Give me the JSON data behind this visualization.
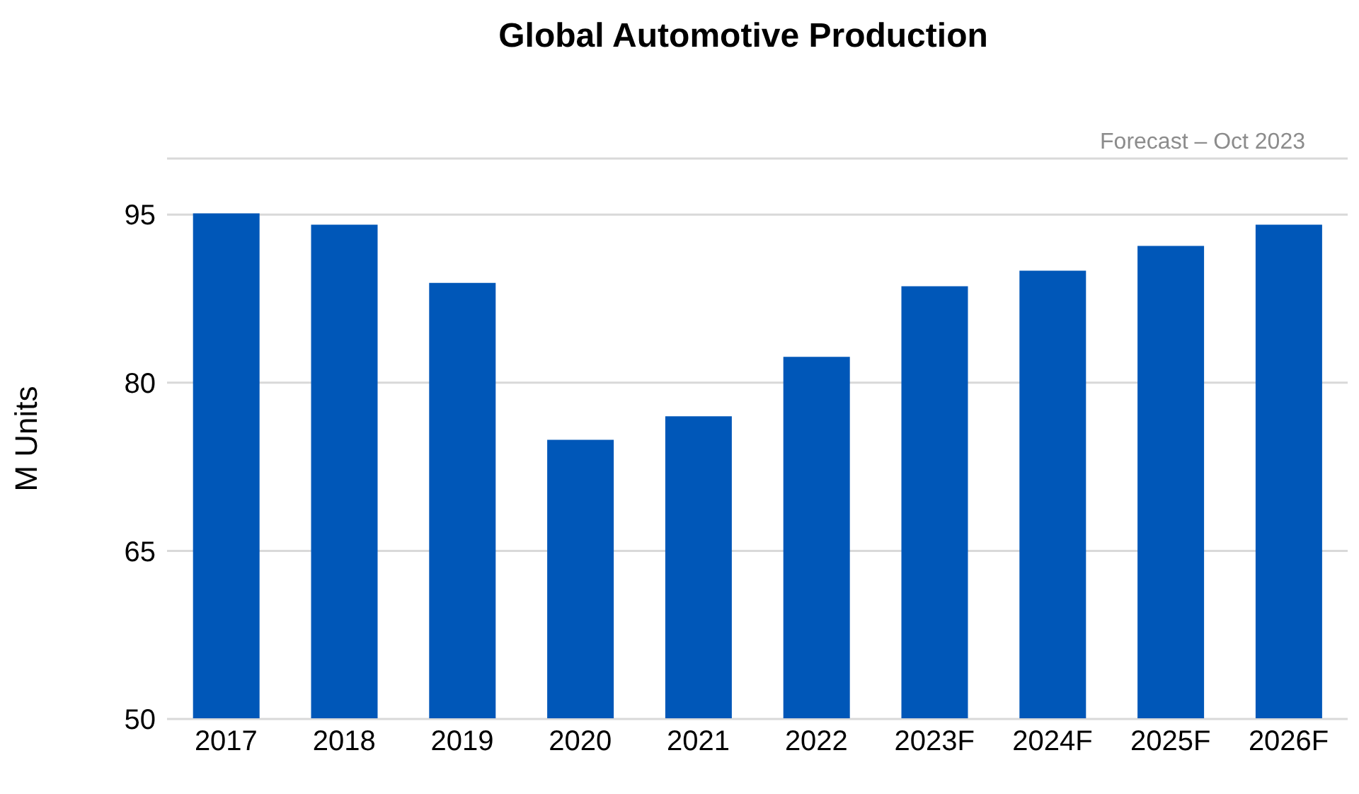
{
  "chart_data": {
    "type": "bar",
    "title": "Global Automotive Production",
    "ylabel": "M Units",
    "annotations": [
      "Forecast – Oct 2023"
    ],
    "categories": [
      "2017",
      "2018",
      "2019",
      "2020",
      "2021",
      "2022",
      "2023F",
      "2024F",
      "2025F",
      "2026F"
    ],
    "values": [
      95.1,
      94.1,
      88.9,
      74.9,
      77.0,
      82.3,
      88.6,
      90.0,
      92.2,
      94.1
    ],
    "color": "#0057b8",
    "ylim": [
      50,
      100
    ],
    "yticks": [
      50,
      65,
      80,
      95
    ],
    "grid": "y"
  }
}
